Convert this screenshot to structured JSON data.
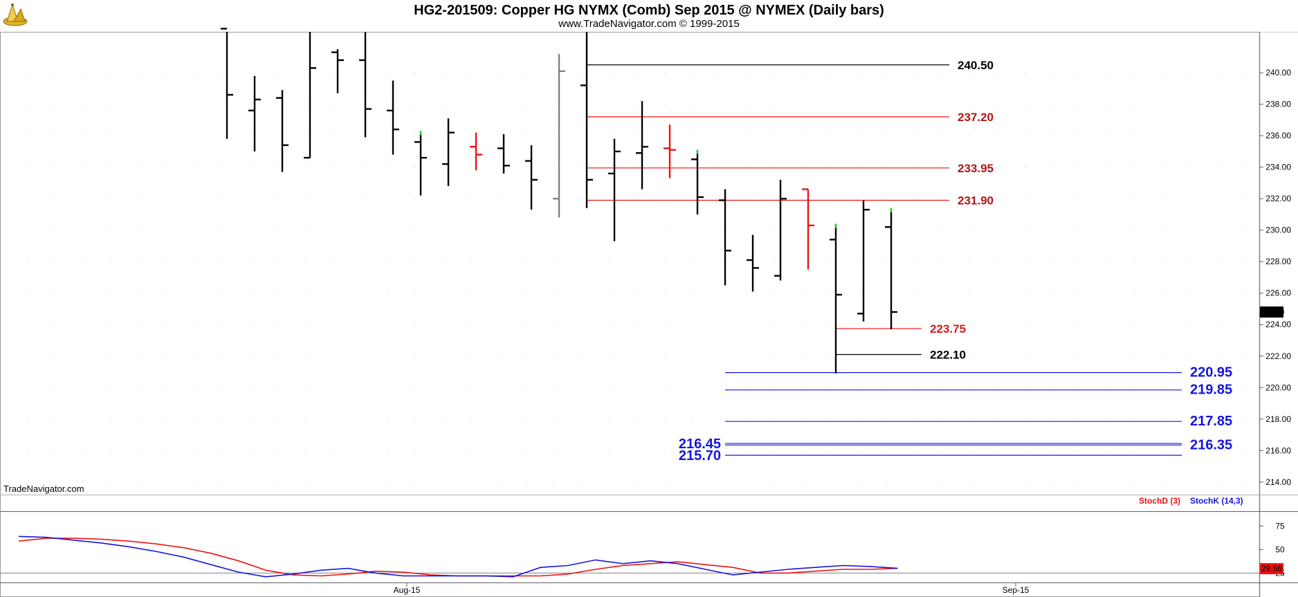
{
  "header": {
    "title": "HG2-201509:  Copper HG NYMX (Comb) Sep 2015 @ NYMEX  (Daily bars)",
    "copyright": "www.TradeNavigator.com © 1999-2015"
  },
  "watermark": "TradeNavigator.com",
  "colors": {
    "bar": "#000000",
    "bar_down": "#ee1111",
    "bar_grey": "#808080",
    "bar_green_tick": "#22dd22",
    "level_black": "#000000",
    "level_red": "#ee1111",
    "level_blue": "#1414e0",
    "stoch_d": "#ee1111",
    "stoch_k": "#1414e0"
  },
  "chart_data": [
    {
      "type": "ohlc",
      "title": "HG2-201509:  Copper HG NYMX (Comb) Sep 2015 @ NYMEX  (Daily bars)",
      "ylim": [
        213.2,
        242.6
      ],
      "y_ticks": [
        "214.00",
        "216.00",
        "218.00",
        "220.00",
        "222.00",
        "224.00",
        "226.00",
        "228.00",
        "230.00",
        "232.00",
        "234.00",
        "236.00",
        "238.00",
        "240.00"
      ],
      "x_ticks": [
        {
          "label": "Aug-15",
          "bar_index": 14.5
        },
        {
          "label": "Sep-15",
          "bar_index": 36.5
        }
      ],
      "grid": true,
      "last_price": "224.80",
      "bars": [
        {
          "o": null,
          "h": null,
          "l": null,
          "c": null
        },
        {
          "o": null,
          "h": null,
          "l": null,
          "c": null
        },
        {
          "o": null,
          "h": null,
          "l": null,
          "c": null
        },
        {
          "o": null,
          "h": null,
          "l": null,
          "c": null
        },
        {
          "o": null,
          "h": null,
          "l": null,
          "c": null
        },
        {
          "o": null,
          "h": null,
          "l": null,
          "c": null
        },
        {
          "o": null,
          "h": null,
          "l": null,
          "c": null
        },
        {
          "o": null,
          "h": null,
          "l": null,
          "c": null
        },
        {
          "o": 242.8,
          "h": 242.8,
          "l": 235.8,
          "c": 238.6,
          "color": "black"
        },
        {
          "o": 237.6,
          "h": 239.8,
          "l": 235.0,
          "c": 238.3,
          "color": "black"
        },
        {
          "o": 238.4,
          "h": 238.9,
          "l": 233.7,
          "c": 235.4,
          "color": "black"
        },
        {
          "o": 234.6,
          "h": 242.8,
          "l": 234.6,
          "c": 240.3,
          "color": "black"
        },
        {
          "o": 241.3,
          "h": 241.5,
          "l": 238.7,
          "c": 240.8,
          "color": "black"
        },
        {
          "o": 240.8,
          "h": 242.8,
          "l": 235.9,
          "c": 237.7,
          "color": "black"
        },
        {
          "o": 237.6,
          "h": 239.5,
          "l": 234.8,
          "c": 236.4,
          "color": "black"
        },
        {
          "o": 235.6,
          "h": 236.3,
          "l": 232.2,
          "c": 234.6,
          "color": "black",
          "tick": "green"
        },
        {
          "o": 234.2,
          "h": 237.1,
          "l": 232.8,
          "c": 236.2,
          "color": "black"
        },
        {
          "o": 235.3,
          "h": 236.2,
          "l": 233.8,
          "c": 234.8,
          "color": "red"
        },
        {
          "o": 235.2,
          "h": 236.1,
          "l": 233.6,
          "c": 234.1,
          "color": "black"
        },
        {
          "o": 234.4,
          "h": 235.4,
          "l": 231.3,
          "c": 233.2,
          "color": "black"
        },
        {
          "o": 232.0,
          "h": 241.2,
          "l": 230.8,
          "c": 240.1,
          "color": "grey"
        },
        {
          "o": 239.2,
          "h": 242.8,
          "l": 231.4,
          "c": 233.2,
          "color": "black"
        },
        {
          "o": 233.6,
          "h": 235.8,
          "l": 229.3,
          "c": 235.0,
          "color": "black"
        },
        {
          "o": 234.9,
          "h": 238.2,
          "l": 232.6,
          "c": 235.3,
          "color": "black"
        },
        {
          "o": 235.2,
          "h": 236.7,
          "l": 233.3,
          "c": 235.1,
          "color": "red"
        },
        {
          "o": 234.5,
          "h": 235.1,
          "l": 231.0,
          "c": 232.1,
          "color": "black",
          "tick": "green"
        },
        {
          "o": 231.9,
          "h": 232.6,
          "l": 226.5,
          "c": 228.7,
          "color": "black"
        },
        {
          "o": 228.1,
          "h": 229.7,
          "l": 226.1,
          "c": 227.6,
          "color": "black"
        },
        {
          "o": 227.1,
          "h": 233.2,
          "l": 226.8,
          "c": 232.0,
          "color": "black"
        },
        {
          "o": 232.6,
          "h": 232.6,
          "l": 227.5,
          "c": 230.3,
          "color": "red"
        },
        {
          "o": 229.4,
          "h": 230.4,
          "l": 220.9,
          "c": 225.9,
          "color": "black",
          "tick": "green"
        },
        {
          "o": 224.7,
          "h": 231.9,
          "l": 224.2,
          "c": 231.3,
          "color": "black"
        },
        {
          "o": 230.2,
          "h": 231.4,
          "l": 223.7,
          "c": 224.8,
          "color": "black",
          "tick": "green"
        }
      ],
      "levels": [
        {
          "value": 240.5,
          "label": "240.50",
          "color": "black",
          "from_bar": 21,
          "to_bar": 34.1,
          "label_at": "end",
          "label_style": "black"
        },
        {
          "value": 237.2,
          "label": "237.20",
          "color": "red",
          "from_bar": 21,
          "to_bar": 34.1,
          "label_at": "end",
          "label_style": "darkred"
        },
        {
          "value": 233.95,
          "label": "233.95",
          "color": "red",
          "from_bar": 21,
          "to_bar": 34.1,
          "label_at": "end",
          "label_style": "darkred"
        },
        {
          "value": 231.9,
          "label": "231.90",
          "color": "red",
          "from_bar": 21,
          "to_bar": 34.1,
          "label_at": "end",
          "label_style": "darkred"
        },
        {
          "value": 223.75,
          "label": "223.75",
          "color": "red",
          "from_bar": 30,
          "to_bar": 33.1,
          "label_at": "end",
          "label_style": "red"
        },
        {
          "value": 222.1,
          "label": "222.10",
          "color": "black",
          "from_bar": 30,
          "to_bar": 33.1,
          "label_at": "end",
          "label_style": "black"
        },
        {
          "value": 220.95,
          "label": "220.95",
          "color": "blue",
          "from_bar": 26,
          "to_bar": 42.5,
          "label_at": "end",
          "label_style": "blue"
        },
        {
          "value": 219.85,
          "label": "219.85",
          "color": "blue",
          "from_bar": 26,
          "to_bar": 42.5,
          "label_at": "end",
          "label_style": "blue"
        },
        {
          "value": 217.85,
          "label": "217.85",
          "color": "blue",
          "from_bar": 26,
          "to_bar": 42.5,
          "label_at": "end",
          "label_style": "blue"
        },
        {
          "value": 216.45,
          "label": "216.45",
          "color": "blue",
          "from_bar": 26,
          "to_bar": 42.5,
          "label_at": "start",
          "label_style": "blue"
        },
        {
          "value": 216.35,
          "label": "216.35",
          "color": "blue",
          "from_bar": 26,
          "to_bar": 42.5,
          "label_at": "end",
          "label_style": "blue"
        },
        {
          "value": 215.7,
          "label": "215.70",
          "color": "blue",
          "from_bar": 26,
          "to_bar": 42.5,
          "label_at": "start",
          "label_style": "blue"
        }
      ]
    },
    {
      "type": "line",
      "ylim": [
        15,
        90
      ],
      "y_ticks": [
        "25",
        "50",
        "75"
      ],
      "reference_line": 25,
      "last_value": "29.66",
      "series": [
        {
          "name": "StochD (3)",
          "color": "red",
          "values": [
            59,
            62,
            62,
            61,
            59,
            56,
            52,
            46,
            38,
            28,
            23,
            22,
            24,
            27,
            26,
            23,
            22,
            22,
            22,
            22,
            24,
            29,
            33,
            35,
            37,
            34,
            31,
            25,
            25,
            27,
            29,
            29,
            30
          ]
        },
        {
          "name": "StochK (14,3)",
          "color": "blue",
          "values": [
            64,
            63,
            60,
            57,
            53,
            48,
            42,
            34,
            26,
            21,
            24,
            28,
            30,
            25,
            22,
            22,
            22,
            22,
            21,
            31,
            33,
            39,
            35,
            38,
            35,
            29,
            23,
            26,
            29,
            31,
            33,
            32,
            30
          ]
        }
      ]
    }
  ]
}
